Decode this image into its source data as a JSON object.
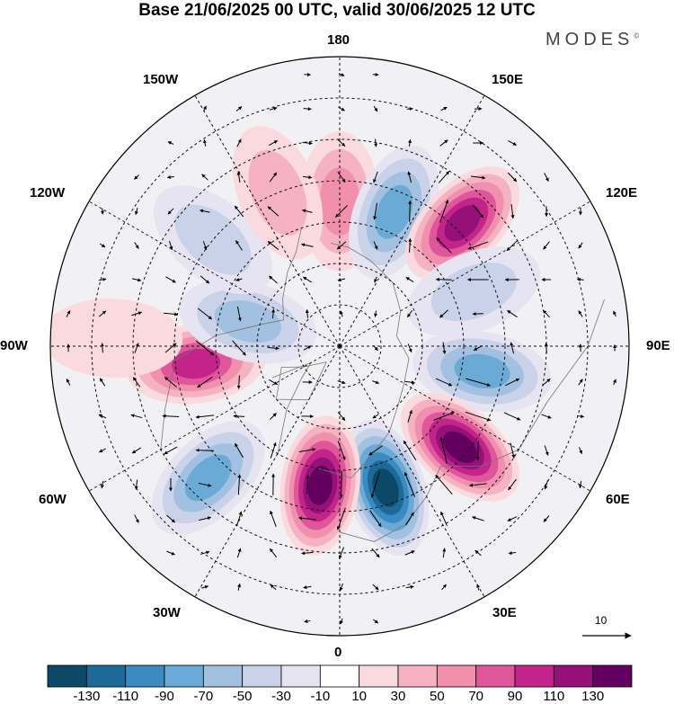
{
  "header": {
    "title": "Base 21/06/2025 00 UTC, valid 30/06/2025 12 UTC",
    "logo": "MODES"
  },
  "map": {
    "projection": "north-polar-stereographic",
    "longitude_labels": {
      "top": "180",
      "bottom": "0",
      "left": "90W",
      "right": "90E",
      "upper_left_1": "150W",
      "upper_left_2": "120W",
      "upper_right_1": "150E",
      "upper_right_2": "120E",
      "lower_left_1": "60W",
      "lower_left_2": "30W",
      "lower_right_1": "60E",
      "lower_right_2": "30E"
    },
    "anomaly_centers": [
      {
        "lon": 180,
        "lat": 55,
        "sign": "positive",
        "magnitude": 50
      },
      {
        "lon": 158,
        "lat": 55,
        "sign": "negative",
        "magnitude": 70
      },
      {
        "lon": 135,
        "lat": 48,
        "sign": "positive",
        "magnitude": 110
      },
      {
        "lon": 112,
        "lat": 55,
        "sign": "negative",
        "magnitude": 30
      },
      {
        "lon": 80,
        "lat": 55,
        "sign": "negative",
        "magnitude": 70
      },
      {
        "lon": 50,
        "lat": 52,
        "sign": "positive",
        "magnitude": 130
      },
      {
        "lon": 18,
        "lat": 54,
        "sign": "negative",
        "magnitude": 130
      },
      {
        "lon": 352,
        "lat": 56,
        "sign": "positive",
        "magnitude": 130
      },
      {
        "lon": 315,
        "lat": 45,
        "sign": "negative",
        "magnitude": 70
      },
      {
        "lon": 277,
        "lat": 55,
        "sign": "positive",
        "magnitude": 90
      },
      {
        "lon": 255,
        "lat": 67,
        "sign": "negative",
        "magnitude": 50
      },
      {
        "lon": 230,
        "lat": 50,
        "sign": "negative",
        "magnitude": 30
      },
      {
        "lon": 202,
        "lat": 50,
        "sign": "positive",
        "magnitude": 30
      },
      {
        "lon": 268,
        "lat": 35,
        "sign": "positive",
        "magnitude": 10
      }
    ]
  },
  "vector_reference": {
    "label": "10"
  },
  "colorbar": {
    "ticks": [
      "-130",
      "-110",
      "-90",
      "-70",
      "-50",
      "-30",
      "-10",
      "10",
      "30",
      "50",
      "70",
      "90",
      "110",
      "130"
    ],
    "colors": [
      "#0c4868",
      "#1d6a99",
      "#3a8bc2",
      "#6aaad5",
      "#a2c0e0",
      "#c8d2e8",
      "#e6e4f1",
      "#ffffff",
      "#fadadd",
      "#f5b3c1",
      "#f090ae",
      "#e0569b",
      "#c2248a",
      "#951078",
      "#63005f"
    ]
  },
  "palette": {
    "neg": [
      "#e6e4f1",
      "#c8d2e8",
      "#a2c0e0",
      "#6aaad5",
      "#3a8bc2",
      "#1d6a99",
      "#0c4868"
    ],
    "pos": [
      "#fadadd",
      "#f5b3c1",
      "#f090ae",
      "#e0569b",
      "#c2248a",
      "#951078",
      "#63005f"
    ]
  }
}
